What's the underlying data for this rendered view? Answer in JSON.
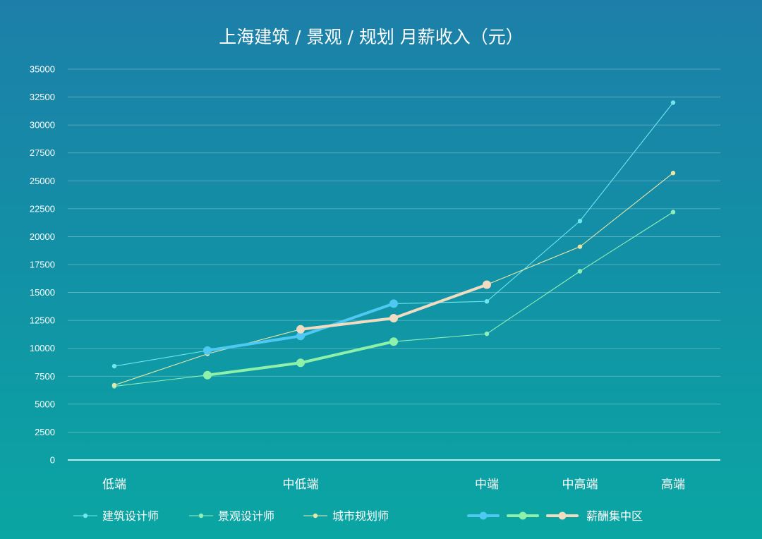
{
  "chart_data": {
    "type": "line",
    "title": "上海建筑 / 景观 / 规划 月薪收入（元）",
    "xlabel": "",
    "ylabel": "",
    "ylim": [
      0,
      35000
    ],
    "y_ticks": [
      0,
      2500,
      5000,
      7500,
      10000,
      12500,
      15000,
      17500,
      20000,
      22500,
      25000,
      27500,
      30000,
      32500,
      35000
    ],
    "x_categories": [
      "低端",
      "",
      "中低端",
      "",
      "中端",
      "中高端",
      "高端"
    ],
    "grid": true,
    "legend_position": "bottom",
    "series": [
      {
        "name": "建筑设计师",
        "color": "#6ee6ee",
        "values": [
          8400,
          9800,
          11100,
          14000,
          14200,
          21400,
          32000
        ]
      },
      {
        "name": "景观设计师",
        "color": "#8df0b8",
        "values": [
          6600,
          7600,
          8700,
          10600,
          11300,
          16900,
          22200
        ]
      },
      {
        "name": "城市规划师",
        "color": "#e8e6a6",
        "values": [
          6700,
          9500,
          11700,
          12700,
          15700,
          19100,
          25700
        ]
      }
    ],
    "highlight_series": [
      {
        "name": "",
        "color": "#4fc8f2",
        "points": [
          [
            1,
            9800
          ],
          [
            2,
            11100
          ],
          [
            3,
            14000
          ]
        ]
      },
      {
        "name": "",
        "color": "#8ef1a9",
        "points": [
          [
            1,
            7600
          ],
          [
            2,
            8700
          ],
          [
            3,
            10600
          ]
        ]
      },
      {
        "name": "薪酬集中区",
        "color": "#f1dcc2",
        "points": [
          [
            2,
            11700
          ],
          [
            3,
            12700
          ],
          [
            4,
            15700
          ]
        ]
      }
    ]
  }
}
